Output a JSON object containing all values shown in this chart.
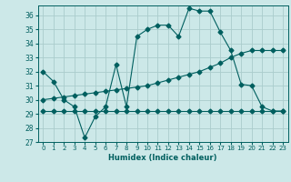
{
  "xlabel": "Humidex (Indice chaleur)",
  "bg_color": "#cce8e8",
  "grid_color": "#aacccc",
  "line_color": "#005f5f",
  "xlim": [
    -0.5,
    23.5
  ],
  "ylim": [
    27,
    36.7
  ],
  "yticks": [
    27,
    28,
    29,
    30,
    31,
    32,
    33,
    34,
    35,
    36
  ],
  "xticks": [
    0,
    1,
    2,
    3,
    4,
    5,
    6,
    7,
    8,
    9,
    10,
    11,
    12,
    13,
    14,
    15,
    16,
    17,
    18,
    19,
    20,
    21,
    22,
    23
  ],
  "line1_x": [
    0,
    1,
    2,
    3,
    4,
    5,
    6,
    7,
    8,
    9,
    10,
    11,
    12,
    13,
    14,
    15,
    16,
    17,
    18,
    19,
    20,
    21,
    22,
    23
  ],
  "line1_y": [
    32.0,
    31.3,
    30.0,
    29.5,
    27.3,
    28.8,
    29.5,
    32.5,
    29.5,
    34.5,
    35.0,
    35.3,
    35.3,
    34.5,
    36.5,
    36.3,
    36.3,
    34.8,
    33.5,
    31.1,
    31.0,
    29.5,
    29.2,
    29.2
  ],
  "line2_x": [
    0,
    1,
    2,
    3,
    4,
    5,
    6,
    7,
    8,
    9,
    10,
    11,
    12,
    13,
    14,
    15,
    16,
    17,
    18,
    19,
    20,
    21,
    22,
    23
  ],
  "line2_y": [
    30.0,
    30.1,
    30.2,
    30.3,
    30.4,
    30.5,
    30.6,
    30.7,
    30.8,
    30.9,
    31.0,
    31.2,
    31.4,
    31.6,
    31.8,
    32.0,
    32.3,
    32.6,
    33.0,
    33.3,
    33.5,
    33.5,
    33.5,
    33.5
  ],
  "line3_x": [
    0,
    1,
    2,
    3,
    4,
    5,
    6,
    7,
    8,
    9,
    10,
    11,
    12,
    13,
    14,
    15,
    16,
    17,
    18,
    19,
    20,
    21,
    22,
    23
  ],
  "line3_y": [
    29.2,
    29.2,
    29.2,
    29.2,
    29.2,
    29.2,
    29.2,
    29.2,
    29.2,
    29.2,
    29.2,
    29.2,
    29.2,
    29.2,
    29.2,
    29.2,
    29.2,
    29.2,
    29.2,
    29.2,
    29.2,
    29.2,
    29.2,
    29.2
  ]
}
